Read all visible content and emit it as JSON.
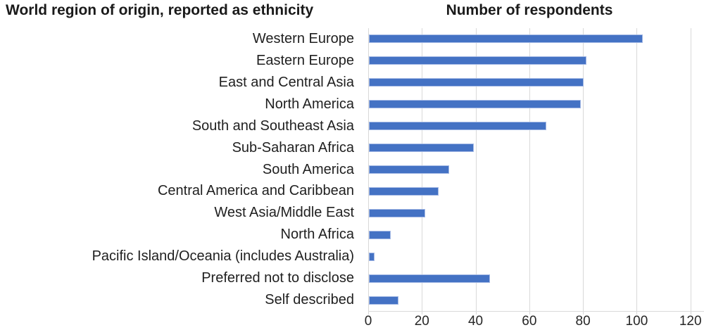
{
  "titles": {
    "left": "World region of origin, reported as ethnicity",
    "right": "Number of respondents"
  },
  "chart_data": {
    "type": "bar",
    "orientation": "horizontal",
    "title": "Number of respondents",
    "categories_title": "World region of origin, reported as ethnicity",
    "categories": [
      "Western Europe",
      "Eastern Europe",
      "East and Central Asia",
      "North America",
      "South and Southeast Asia",
      "Sub-Saharan Africa",
      "South America",
      "Central America and Caribbean",
      "West Asia/Middle East",
      "North Africa",
      "Pacific Island/Oceania (includes Australia)",
      "Preferred not to disclose",
      "Self described"
    ],
    "values": [
      102,
      81,
      80,
      79,
      66,
      39,
      30,
      26,
      21,
      8,
      2,
      45,
      11
    ],
    "x_ticks": [
      0,
      20,
      40,
      60,
      80,
      100,
      120
    ],
    "xlim": [
      0,
      125
    ],
    "grid": true,
    "legend": false,
    "bar_color": "#4472c4",
    "gridline_color": "#d9d9d9",
    "text_color": "#1f1f1f"
  }
}
